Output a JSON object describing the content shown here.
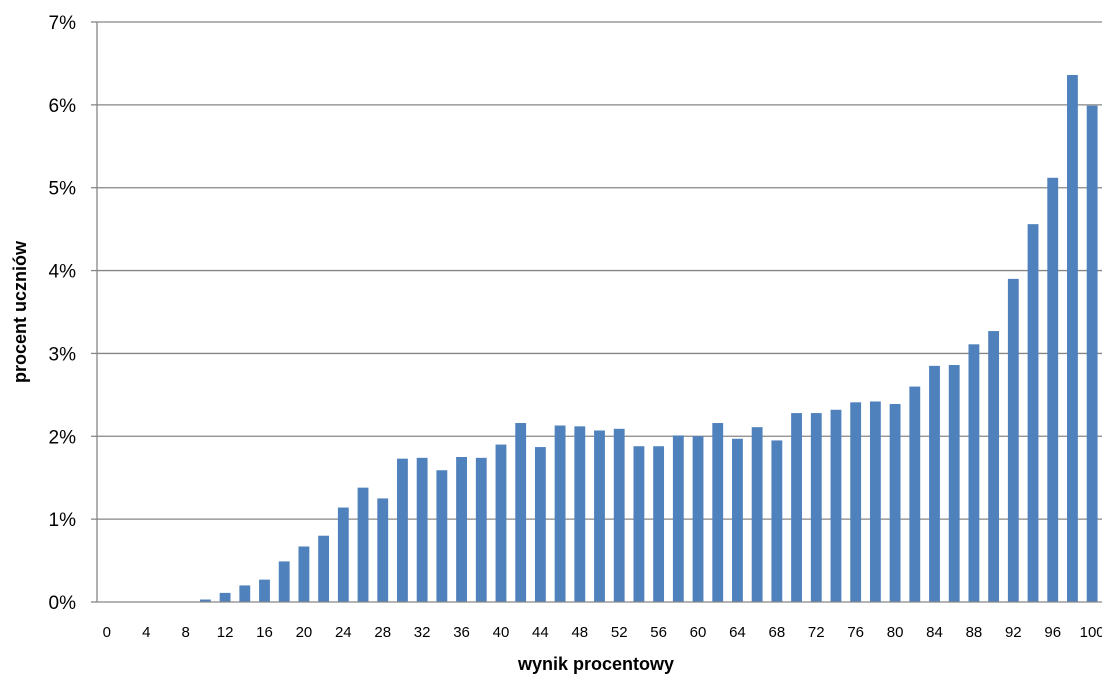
{
  "chart_data": {
    "type": "bar",
    "title": "",
    "xlabel": "wynik procentowy",
    "ylabel": "procent uczniów",
    "x": [
      0,
      2,
      4,
      6,
      8,
      10,
      12,
      14,
      16,
      18,
      20,
      22,
      24,
      26,
      28,
      30,
      32,
      34,
      36,
      38,
      40,
      42,
      44,
      46,
      48,
      50,
      52,
      54,
      56,
      58,
      60,
      62,
      64,
      66,
      68,
      70,
      72,
      74,
      76,
      78,
      80,
      82,
      84,
      86,
      88,
      90,
      92,
      94,
      96,
      98,
      100
    ],
    "x_tick_labels": [
      "0",
      "4",
      "8",
      "12",
      "16",
      "20",
      "24",
      "28",
      "32",
      "36",
      "40",
      "44",
      "48",
      "52",
      "56",
      "60",
      "64",
      "68",
      "72",
      "76",
      "80",
      "84",
      "88",
      "92",
      "96",
      "100"
    ],
    "values": [
      0,
      0,
      0,
      0,
      0,
      0.03,
      0.11,
      0.2,
      0.27,
      0.49,
      0.67,
      0.8,
      1.14,
      1.38,
      1.25,
      1.73,
      1.74,
      1.59,
      1.75,
      1.74,
      1.9,
      2.16,
      1.87,
      2.13,
      2.12,
      2.07,
      2.09,
      1.88,
      1.88,
      2.01,
      2.0,
      2.16,
      1.97,
      2.11,
      1.95,
      2.28,
      2.28,
      2.32,
      2.41,
      2.42,
      2.39,
      2.6,
      2.85,
      2.86,
      3.11,
      3.27,
      3.9,
      4.56,
      5.12,
      6.36,
      5.99
    ],
    "y_ticks": [
      0,
      1,
      2,
      3,
      4,
      5,
      6,
      7
    ],
    "y_tick_format": "%",
    "ylim": [
      0,
      7
    ],
    "grid": "horizontal",
    "legend": "none",
    "colors": {
      "bar": "#4f81bd",
      "grid": "#868686",
      "axis": "#868686"
    }
  }
}
